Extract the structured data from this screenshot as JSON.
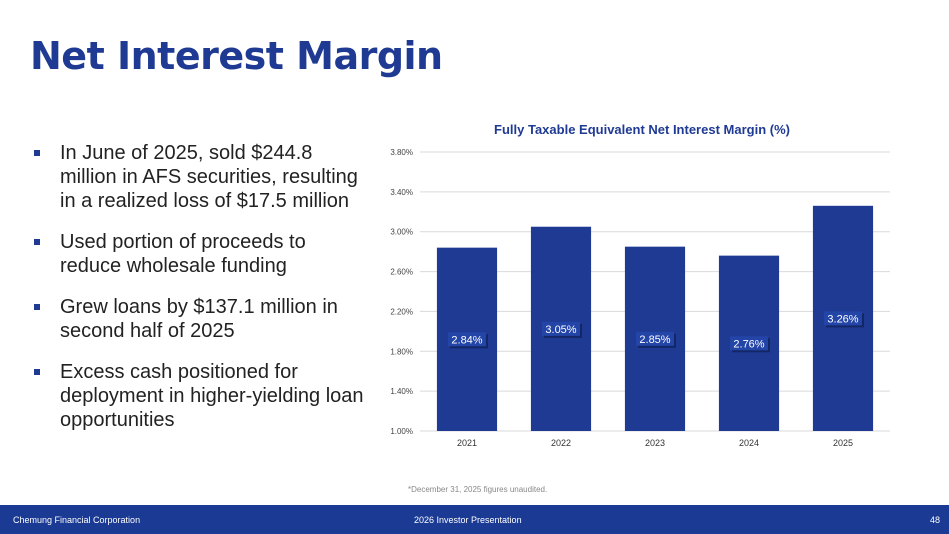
{
  "page": {
    "title": "Net Interest Margin",
    "bullets": [
      "In June of 2025, sold $244.8 million in AFS securities, resulting in a realized loss of $17.5 million",
      "Used portion of proceeds to reduce wholesale funding",
      "Grew loans by $137.1 million in second half of 2025",
      "Excess cash positioned for deployment in higher-yielding loan opportunities"
    ],
    "footnote": "*December 31, 2025 figures unaudited."
  },
  "footer": {
    "company": "Chemung Financial Corporation",
    "presentation": "2026 Investor Presentation",
    "page_number": "48"
  },
  "colors": {
    "brand": "#1f3a93",
    "bar": "#1f3a93",
    "footer": "#1a3a94",
    "grid": "#d9d9d9"
  },
  "chart_data": {
    "type": "bar",
    "title": "Fully Taxable Equivalent Net Interest Margin (%)",
    "xlabel": "",
    "ylabel": "",
    "categories": [
      "2021",
      "2022",
      "2023",
      "2024",
      "2025"
    ],
    "values": [
      2.84,
      3.05,
      2.85,
      2.76,
      3.26
    ],
    "data_labels": [
      "2.84%",
      "3.05%",
      "2.85%",
      "2.76%",
      "3.26%"
    ],
    "yticks": [
      1.0,
      1.4,
      1.8,
      2.2,
      2.6,
      3.0,
      3.4,
      3.8
    ],
    "ytick_labels": [
      "1.00%",
      "1.40%",
      "1.80%",
      "2.20%",
      "2.60%",
      "3.00%",
      "3.40%",
      "3.80%"
    ],
    "ylim": [
      1.0,
      3.8
    ],
    "grid": true,
    "legend": "none"
  }
}
